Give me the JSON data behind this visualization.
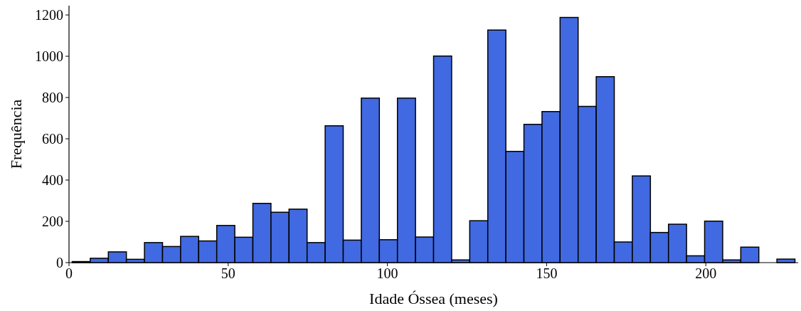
{
  "chart_data": {
    "type": "histogram",
    "xlabel": "Idade Óssea (meses)",
    "ylabel": "Frequência",
    "color": "#4169e1",
    "bins": [
      1,
      6.675,
      12.35,
      18.025,
      23.7,
      29.375,
      35.05,
      40.725,
      46.4,
      52.075,
      57.75,
      63.425,
      69.1,
      74.775,
      80.45,
      86.125,
      91.8,
      97.475,
      103.15,
      108.825,
      114.5,
      120.175,
      125.85,
      131.525,
      137.2,
      142.875,
      148.55,
      154.225,
      159.9,
      165.575,
      171.25,
      176.925,
      182.6,
      188.275,
      193.95,
      199.625,
      205.3,
      210.975,
      216.65,
      222.325,
      228
    ],
    "values": [
      5,
      21,
      52,
      16,
      97,
      78,
      127,
      105,
      180,
      123,
      287,
      244,
      259,
      97,
      663,
      109,
      797,
      111,
      797,
      124,
      1001,
      13,
      203,
      1127,
      539,
      670,
      732,
      1188,
      757,
      901,
      100,
      420,
      146,
      186,
      33,
      201,
      13,
      75,
      null,
      17
    ],
    "xlim": [
      0,
      229
    ],
    "xticks": [
      0,
      50,
      100,
      150,
      200
    ],
    "ylim": [
      0,
      1245
    ],
    "yticks": [
      0,
      200,
      400,
      600,
      800,
      1000,
      1200
    ],
    "grid": false
  }
}
